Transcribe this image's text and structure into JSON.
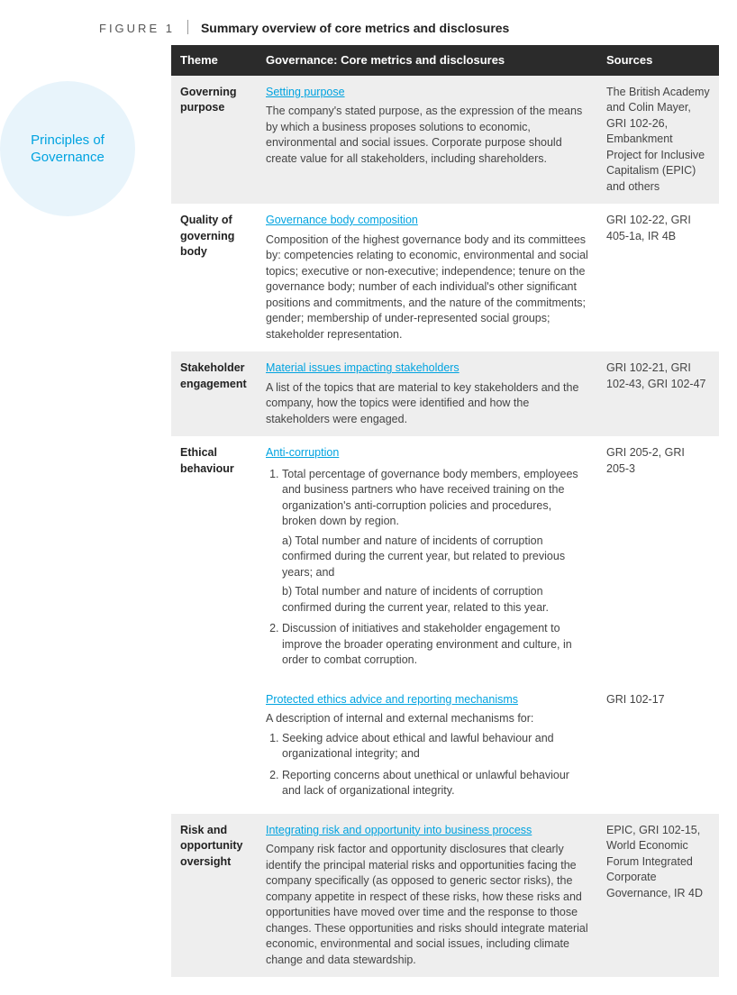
{
  "figure_label": "FIGURE 1",
  "figure_title": "Summary overview of core metrics and disclosures",
  "badge_text": "Principles of Governance",
  "colors": {
    "header_bg": "#2b2b2b",
    "header_fg": "#ffffff",
    "shade_bg": "#eeeeee",
    "link_color": "#00a3e0",
    "badge_bg": "#e8f4fb",
    "badge_fg": "#00a3e0",
    "body_bg": "#ffffff",
    "text_color": "#444444"
  },
  "columns": {
    "theme": "Theme",
    "metrics": "Governance: Core metrics and disclosures",
    "sources": "Sources"
  },
  "rows": [
    {
      "shade": true,
      "theme": "Governing purpose",
      "link": "Setting purpose",
      "body": "The company's stated purpose, as the expression of the means by which a business proposes solutions to economic, environmental and social issues. Corporate purpose should create value for all stakeholders, including shareholders.",
      "sources": "The British Academy and Colin Mayer, GRI 102-26, Embankment Project for Inclusive Capitalism (EPIC) and others"
    },
    {
      "shade": false,
      "theme": "Quality of governing body",
      "link": "Governance body composition",
      "body": "Composition of the highest governance body and its committees by: competencies relating to economic, environmental and social topics; executive or non-executive; independence; tenure on the governance body; number of each individual's other significant positions and commitments, and the nature of the commitments; gender; membership of under-represented social groups; stakeholder representation.",
      "sources": "GRI 102-22, GRI 405-1a, IR 4B"
    },
    {
      "shade": true,
      "theme": "Stakeholder engagement",
      "link": "Material issues impacting stakeholders",
      "body": "A list of the topics that are material to key stakeholders and the company, how the topics were identified and how the stakeholders were engaged.",
      "sources": "GRI 102-21, GRI 102-43, GRI 102-47"
    },
    {
      "shade": false,
      "theme": "Ethical behaviour",
      "link": "Anti-corruption",
      "list": [
        {
          "text": "Total percentage of governance body members, employees and business partners who have received training on the organization's anti-corruption policies and procedures, broken down by region.",
          "subs": [
            "a) Total number and nature of incidents of corruption confirmed during the current year, but related to previous years; and",
            "b) Total number and nature of incidents of corruption confirmed during the current year, related to this year."
          ]
        },
        {
          "text": "Discussion of initiatives and stakeholder engagement to improve the broader operating environment and culture, in order to combat corruption."
        }
      ],
      "sources": "GRI 205-2, GRI 205-3"
    },
    {
      "shade": false,
      "theme": "",
      "link": "Protected ethics advice and reporting mechanisms",
      "body": "A description of internal and external mechanisms for:",
      "list": [
        {
          "text": "Seeking advice about ethical and lawful behaviour and organizational integrity; and"
        },
        {
          "text": "Reporting concerns about unethical or unlawful behaviour and lack of organizational integrity."
        }
      ],
      "sources": "GRI 102-17"
    },
    {
      "shade": true,
      "theme": "Risk and opportunity oversight",
      "link": "Integrating risk and opportunity into business process",
      "body": "Company risk factor and opportunity disclosures that clearly identify the principal material risks and opportunities facing the company specifically (as opposed to generic sector risks), the company appetite in respect of these risks, how these risks and opportunities have moved over time and the response to those changes. These opportunities and risks should integrate material economic, environmental and social issues, including climate change and data stewardship.",
      "sources": "EPIC, GRI 102-15, World Economic Forum Integrated Corporate Governance, IR 4D"
    }
  ]
}
